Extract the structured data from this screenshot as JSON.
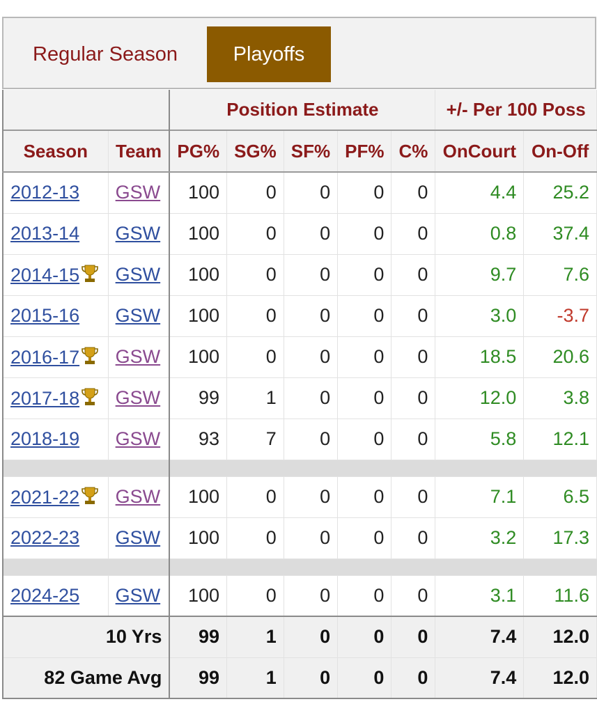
{
  "tabs": {
    "regular": "Regular Season",
    "playoffs": "Playoffs"
  },
  "over_headers": {
    "blank": "",
    "position": "Position Estimate",
    "plusminus": "+/- Per 100 Poss"
  },
  "headers": [
    "Season",
    "Team",
    "PG%",
    "SG%",
    "SF%",
    "PF%",
    "C%",
    "OnCourt",
    "On-Off"
  ],
  "rows": [
    {
      "season": "2012-13",
      "trophy": false,
      "team": "GSW",
      "team_visited": true,
      "pg": "100",
      "sg": "0",
      "sf": "0",
      "pf": "0",
      "c": "0",
      "oncourt": "4.4",
      "onoff": "25.2"
    },
    {
      "season": "2013-14",
      "trophy": false,
      "team": "GSW",
      "team_visited": false,
      "pg": "100",
      "sg": "0",
      "sf": "0",
      "pf": "0",
      "c": "0",
      "oncourt": "0.8",
      "onoff": "37.4"
    },
    {
      "season": "2014-15",
      "trophy": true,
      "team": "GSW",
      "team_visited": false,
      "pg": "100",
      "sg": "0",
      "sf": "0",
      "pf": "0",
      "c": "0",
      "oncourt": "9.7",
      "onoff": "7.6"
    },
    {
      "season": "2015-16",
      "trophy": false,
      "team": "GSW",
      "team_visited": false,
      "pg": "100",
      "sg": "0",
      "sf": "0",
      "pf": "0",
      "c": "0",
      "oncourt": "3.0",
      "onoff": "-3.7"
    },
    {
      "season": "2016-17",
      "trophy": true,
      "team": "GSW",
      "team_visited": true,
      "pg": "100",
      "sg": "0",
      "sf": "0",
      "pf": "0",
      "c": "0",
      "oncourt": "18.5",
      "onoff": "20.6"
    },
    {
      "season": "2017-18",
      "trophy": true,
      "team": "GSW",
      "team_visited": true,
      "pg": "99",
      "sg": "1",
      "sf": "0",
      "pf": "0",
      "c": "0",
      "oncourt": "12.0",
      "onoff": "3.8"
    },
    {
      "season": "2018-19",
      "trophy": false,
      "team": "GSW",
      "team_visited": true,
      "pg": "93",
      "sg": "7",
      "sf": "0",
      "pf": "0",
      "c": "0",
      "oncourt": "5.8",
      "onoff": "12.1",
      "gap_after": true
    },
    {
      "season": "2021-22",
      "trophy": true,
      "team": "GSW",
      "team_visited": true,
      "pg": "100",
      "sg": "0",
      "sf": "0",
      "pf": "0",
      "c": "0",
      "oncourt": "7.1",
      "onoff": "6.5"
    },
    {
      "season": "2022-23",
      "trophy": false,
      "team": "GSW",
      "team_visited": false,
      "pg": "100",
      "sg": "0",
      "sf": "0",
      "pf": "0",
      "c": "0",
      "oncourt": "3.2",
      "onoff": "17.3",
      "gap_after": true
    },
    {
      "season": "2024-25",
      "trophy": false,
      "team": "GSW",
      "team_visited": false,
      "pg": "100",
      "sg": "0",
      "sf": "0",
      "pf": "0",
      "c": "0",
      "oncourt": "3.1",
      "onoff": "11.6"
    }
  ],
  "footer": [
    {
      "label": "10 Yrs",
      "pg": "99",
      "sg": "1",
      "sf": "0",
      "pf": "0",
      "c": "0",
      "oncourt": "7.4",
      "onoff": "12.0"
    },
    {
      "label": "82 Game Avg",
      "pg": "99",
      "sg": "1",
      "sf": "0",
      "pf": "0",
      "c": "0",
      "oncourt": "7.4",
      "onoff": "12.0"
    }
  ],
  "colors": {
    "accent": "#8b1a1a",
    "active_tab": "#8b5a00",
    "positive": "#2e8b22",
    "negative": "#c0392b",
    "link": "#2f4f9f",
    "visited": "#8a4a8f"
  },
  "icons": {
    "champion": "trophy-icon"
  }
}
